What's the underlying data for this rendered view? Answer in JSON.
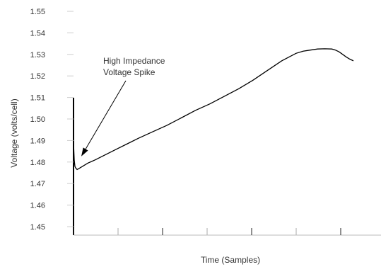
{
  "chart_data": {
    "type": "line",
    "title": "",
    "xlabel": "Time (Samples)",
    "ylabel": "Voltage (volts/cell)",
    "ylim": [
      1.45,
      1.55
    ],
    "yticks": [
      "1.55",
      "1.54",
      "1.53",
      "1.52",
      "1.51",
      "1.50",
      "1.49",
      "1.48",
      "1.47",
      "1.46",
      "1.45"
    ],
    "grid": false,
    "series": [
      {
        "x": [
          0,
          1,
          2,
          3,
          5,
          10,
          20,
          30,
          45,
          60,
          75,
          90,
          110,
          130,
          150,
          170,
          190,
          210,
          230,
          250,
          270,
          290,
          310,
          320,
          330,
          340,
          350,
          360,
          365,
          370,
          375,
          380,
          385,
          390
        ],
        "y": [
          1.489,
          1.481,
          1.478,
          1.4773,
          1.4765,
          1.4775,
          1.4795,
          1.481,
          1.4835,
          1.486,
          1.4885,
          1.491,
          1.494,
          1.497,
          1.5005,
          1.504,
          1.507,
          1.5105,
          1.514,
          1.518,
          1.5225,
          1.527,
          1.5305,
          1.5315,
          1.532,
          1.5325,
          1.5326,
          1.5325,
          1.532,
          1.5312,
          1.53,
          1.5288,
          1.5278,
          1.527
        ],
        "color": "#000000"
      }
    ],
    "annotations": [
      {
        "lines": [
          "High Impedance",
          "Voltage Spike"
        ],
        "arrow_to": {
          "x": 1,
          "y": 1.48
        }
      }
    ]
  }
}
